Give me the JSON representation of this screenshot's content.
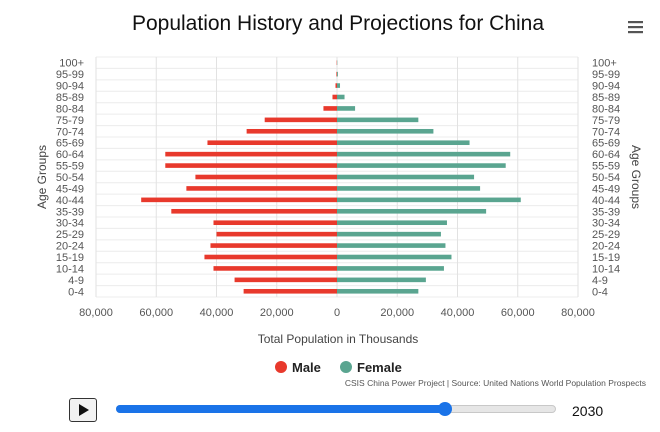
{
  "chart_data": {
    "type": "bar",
    "orientation": "horizontal-pyramid",
    "title": "Population History and Projections for China",
    "xlabel": "Total Population in Thousands",
    "ylabel_left": "Age Groups",
    "ylabel_right": "Age Groups",
    "xlim": [
      -80000,
      80000
    ],
    "x_ticks": [
      -80000,
      -60000,
      -40000,
      -20000,
      0,
      20000,
      40000,
      60000,
      80000
    ],
    "x_tick_labels": [
      "80,000",
      "60,000",
      "40,000",
      "20,000",
      "0",
      "20,000",
      "40,000",
      "60,000",
      "80,000"
    ],
    "grid": true,
    "legend_position": "bottom-center",
    "categories": [
      "100+",
      "95-99",
      "90-94",
      "85-89",
      "80-84",
      "75-79",
      "70-74",
      "65-69",
      "60-64",
      "55-59",
      "50-54",
      "45-49",
      "40-44",
      "35-39",
      "30-34",
      "25-29",
      "20-24",
      "15-19",
      "10-14",
      "4-9",
      "0-4"
    ],
    "series": [
      {
        "name": "Male",
        "color": "#e8392c",
        "side": "left",
        "values": [
          100,
          200,
          500,
          1500,
          4500,
          24000,
          30000,
          43000,
          57000,
          57000,
          47000,
          50000,
          65000,
          55000,
          41000,
          40000,
          42000,
          44000,
          41000,
          34000,
          31000
        ]
      },
      {
        "name": "Female",
        "color": "#5aa590",
        "side": "right",
        "values": [
          100,
          300,
          1000,
          2500,
          6000,
          27000,
          32000,
          44000,
          57500,
          56000,
          45500,
          47500,
          61000,
          49500,
          36500,
          34500,
          36000,
          38000,
          35500,
          29500,
          27000
        ]
      }
    ]
  },
  "legend": {
    "male_label": "Male",
    "female_label": "Female"
  },
  "credits": "CSIS China Power Project | Source: United Nations World Population Prospects",
  "menu": {
    "icon": "hamburger-icon"
  },
  "controls": {
    "play_icon": "play-icon",
    "slider_fraction": 0.747,
    "year": "2030"
  }
}
